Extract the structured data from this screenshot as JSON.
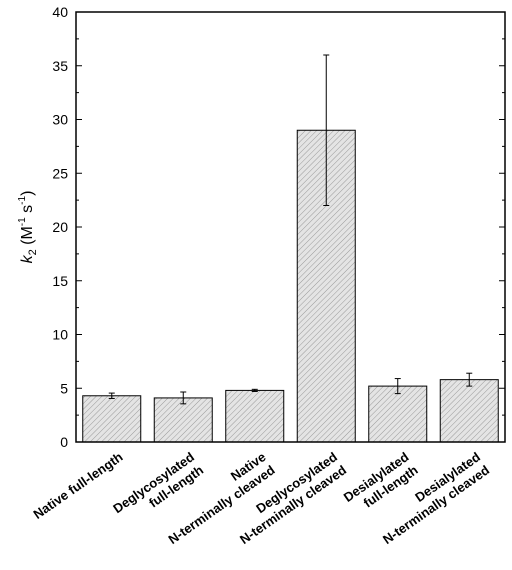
{
  "chart_data": {
    "type": "bar",
    "categories": [
      [
        "Native full-length"
      ],
      [
        "Deglycosylated",
        "full-length"
      ],
      [
        "Native",
        "N-terminally cleaved"
      ],
      [
        "Deglycosylated",
        "N-terminally cleaved"
      ],
      [
        "Desialylated",
        "full-length"
      ],
      [
        "Desialylated",
        "N-terminally cleaved"
      ]
    ],
    "values": [
      4.3,
      4.1,
      4.8,
      29.0,
      5.2,
      5.8
    ],
    "errors": [
      0.25,
      0.55,
      0.1,
      7.0,
      0.7,
      0.6
    ],
    "ylabel": {
      "symbol": "k",
      "subscript": "2",
      "unit_open": " (M",
      "unit_exp1": "-1",
      "unit_mid": " s",
      "unit_exp2": "-1",
      "unit_close": ")"
    },
    "ylim": [
      0,
      40
    ],
    "yticks": [
      0,
      5,
      10,
      15,
      20,
      25,
      30,
      35,
      40
    ],
    "bar_fill": "hatched light gray",
    "grid": false
  }
}
